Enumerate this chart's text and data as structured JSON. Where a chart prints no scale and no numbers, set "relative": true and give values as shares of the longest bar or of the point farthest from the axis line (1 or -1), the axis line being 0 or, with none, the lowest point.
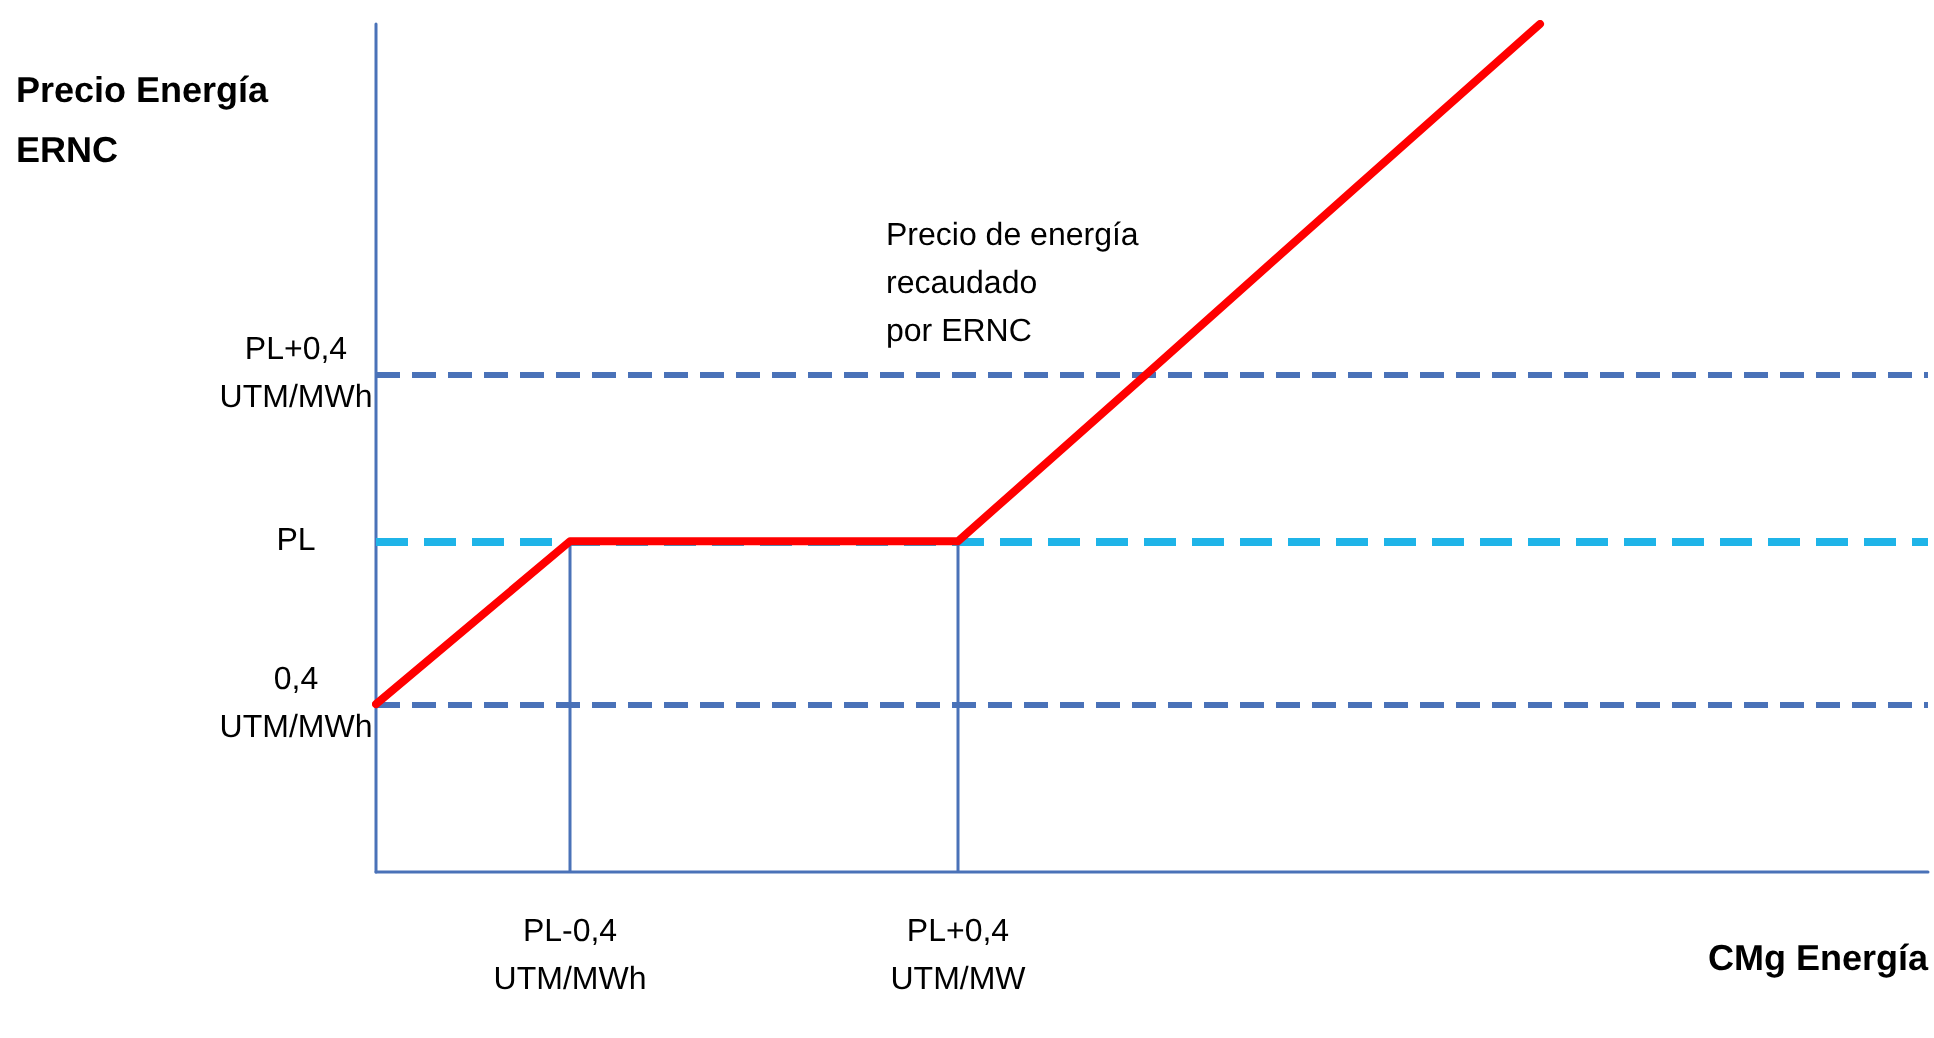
{
  "chart_data": {
    "type": "line",
    "relative": true,
    "ylabel": "Precio Energía\nERNC",
    "xlabel": "CMg Energía",
    "categories": [
      null,
      "PL-0,4\nUTM/MWh",
      null,
      "PL+0,4\nUTM/MW",
      null,
      null,
      null,
      null,
      null
    ],
    "tick_labels": "x",
    "series": [
      {
        "color": "#ff0000",
        "values": [
          0.198,
          0.39,
          0.39,
          0.39,
          0.593,
          0.797,
          1,
          null,
          null
        ]
      }
    ],
    "ref_lines": [
      {
        "axis": "y",
        "value": 0.198,
        "label": "0,4\nUTM/MWh",
        "color": "#4a72b8",
        "line_style": "dashed"
      },
      {
        "axis": "y",
        "value": 0.39,
        "label": "PL",
        "color": "#1fb4e8",
        "line_style": "dashed"
      },
      {
        "axis": "y",
        "value": 0.587,
        "label": "PL+0,4\nUTM/MWh",
        "color": "#4a72b8",
        "line_style": "dashed"
      },
      {
        "axis": "x",
        "value": "PL-0,4\nUTM/MWh",
        "color": "#4a72b8",
        "line_style": "solid"
      },
      {
        "axis": "x",
        "value": "PL+0,4\nUTM/MW",
        "color": "#4a72b8",
        "line_style": "solid"
      }
    ],
    "annotations": [
      "Precio de energía\nrecaudado\npor ERNC"
    ],
    "marker": "none",
    "line_style": "solid"
  }
}
